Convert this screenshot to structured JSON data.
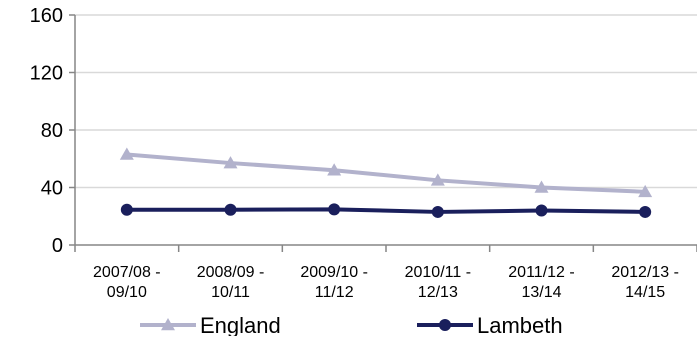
{
  "chart_data": {
    "type": "line",
    "title": "",
    "xlabel": "",
    "ylabel": "",
    "categories": [
      [
        "2007/08 -",
        "09/10"
      ],
      [
        "2008/09 -",
        "10/11"
      ],
      [
        "2009/10 -",
        "11/12"
      ],
      [
        "2010/11 -",
        "12/13"
      ],
      [
        "2011/12 -",
        "13/14"
      ],
      [
        "2012/13 -",
        "14/15"
      ]
    ],
    "yticks": [
      "0",
      "40",
      "80",
      "120",
      "160"
    ],
    "ylim": [
      0,
      160
    ],
    "grid": true,
    "legend_position": "bottom",
    "series": [
      {
        "name": "England",
        "color": "#b2b2cc",
        "marker": "triangle",
        "values": [
          63,
          57,
          52,
          45,
          40,
          37
        ]
      },
      {
        "name": "Lambeth",
        "color": "#1a1f5c",
        "marker": "circle",
        "values": [
          24.5,
          24.5,
          24.8,
          23,
          24,
          23
        ]
      }
    ]
  }
}
